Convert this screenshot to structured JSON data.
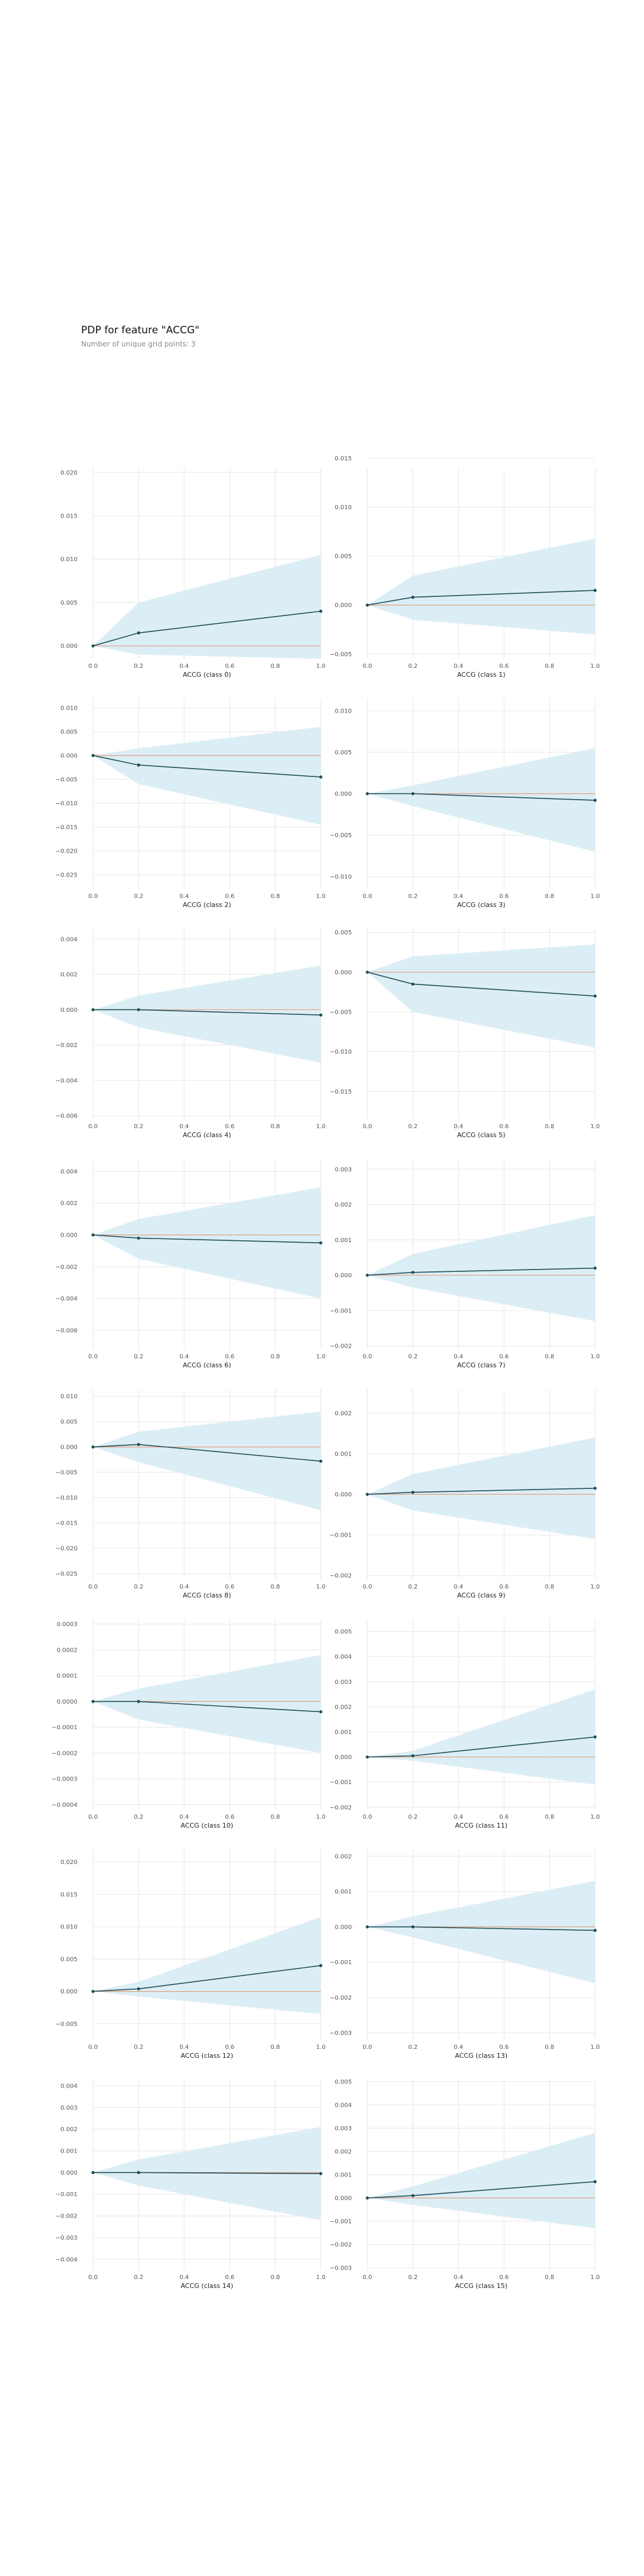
{
  "title": "PDP for feature \"ACCG\"",
  "subtitle": "Number of unique grid points: 3",
  "colors": {
    "line": "#1f4e5a",
    "band": "#d8ecf4",
    "zero": "#e0a080",
    "grid": "#e6e6e6"
  },
  "chart_data": [
    {
      "type": "line",
      "xlabel": "ACCG (class 0)",
      "x": [
        0.0,
        0.2,
        1.0
      ],
      "y": [
        0.0,
        0.0015,
        0.004
      ],
      "lower": [
        0.0,
        -0.001,
        -0.0015
      ],
      "upper": [
        0.0,
        0.005,
        0.0105
      ],
      "xlim": [
        0,
        1
      ],
      "ylim": [
        -0.0015,
        0.0205
      ],
      "xticks": [
        0.0,
        0.2,
        0.4,
        0.6,
        0.8,
        1.0
      ],
      "yticks": [
        0.0,
        0.005,
        0.01,
        0.015,
        0.02
      ],
      "yticklabels": [
        "0.000",
        "0.005",
        "0.010",
        "0.015",
        "0.020"
      ]
    },
    {
      "type": "line",
      "xlabel": "ACCG (class 1)",
      "x": [
        0.0,
        0.2,
        1.0
      ],
      "y": [
        0.0,
        0.0008,
        0.0015
      ],
      "lower": [
        0.0,
        -0.0015,
        -0.003
      ],
      "upper": [
        0.0,
        0.003,
        0.0068
      ],
      "xlim": [
        0,
        1
      ],
      "ylim": [
        -0.0055,
        0.014
      ],
      "xticks": [
        0.0,
        0.2,
        0.4,
        0.6,
        0.8,
        1.0
      ],
      "yticks": [
        -0.005,
        0.0,
        0.005,
        0.01,
        0.015
      ],
      "yticklabels": [
        "−0.005",
        "0.000",
        "0.005",
        "0.010",
        "0.015"
      ]
    },
    {
      "type": "line",
      "xlabel": "ACCG (class 2)",
      "x": [
        0.0,
        0.2,
        1.0
      ],
      "y": [
        0.0,
        -0.002,
        -0.0045
      ],
      "lower": [
        0.0,
        -0.006,
        -0.0145
      ],
      "upper": [
        0.0,
        0.0015,
        0.006
      ],
      "xlim": [
        0,
        1
      ],
      "ylim": [
        -0.028,
        0.012
      ],
      "xticks": [
        0.0,
        0.2,
        0.4,
        0.6,
        0.8,
        1.0
      ],
      "yticks": [
        -0.025,
        -0.02,
        -0.015,
        -0.01,
        -0.005,
        0.0,
        0.005,
        0.01
      ],
      "yticklabels": [
        "−0.025",
        "−0.020",
        "−0.015",
        "−0.010",
        "−0.005",
        "0.000",
        "0.005",
        "0.010"
      ]
    },
    {
      "type": "line",
      "xlabel": "ACCG (class 3)",
      "x": [
        0.0,
        0.2,
        1.0
      ],
      "y": [
        0.0,
        0.0,
        -0.0008
      ],
      "lower": [
        0.0,
        -0.0015,
        -0.007
      ],
      "upper": [
        0.0,
        0.001,
        0.0055
      ],
      "xlim": [
        0,
        1
      ],
      "ylim": [
        -0.0115,
        0.0115
      ],
      "xticks": [
        0.0,
        0.2,
        0.4,
        0.6,
        0.8,
        1.0
      ],
      "yticks": [
        -0.01,
        -0.005,
        0.0,
        0.005,
        0.01
      ],
      "yticklabels": [
        "−0.010",
        "−0.005",
        "0.000",
        "0.005",
        "0.010"
      ]
    },
    {
      "type": "line",
      "xlabel": "ACCG (class 4)",
      "x": [
        0.0,
        0.2,
        1.0
      ],
      "y": [
        0.0,
        0.0,
        -0.0003
      ],
      "lower": [
        0.0,
        -0.001,
        -0.003
      ],
      "upper": [
        0.0,
        0.0008,
        0.0025
      ],
      "xlim": [
        0,
        1
      ],
      "ylim": [
        -0.0062,
        0.0046
      ],
      "xticks": [
        0.0,
        0.2,
        0.4,
        0.6,
        0.8,
        1.0
      ],
      "yticks": [
        -0.006,
        -0.004,
        -0.002,
        0.0,
        0.002,
        0.004
      ],
      "yticklabels": [
        "−0.006",
        "−0.004",
        "−0.002",
        "0.000",
        "0.002",
        "0.004"
      ]
    },
    {
      "type": "line",
      "xlabel": "ACCG (class 5)",
      "x": [
        0.0,
        0.2,
        1.0
      ],
      "y": [
        0.0,
        -0.0015,
        -0.003
      ],
      "lower": [
        0.0,
        -0.005,
        -0.0095
      ],
      "upper": [
        0.0,
        0.002,
        0.0035
      ],
      "xlim": [
        0,
        1
      ],
      "ylim": [
        -0.0185,
        0.0055
      ],
      "xticks": [
        0.0,
        0.2,
        0.4,
        0.6,
        0.8,
        1.0
      ],
      "yticks": [
        -0.015,
        -0.01,
        -0.005,
        0.0,
        0.005
      ],
      "yticklabels": [
        "−0.015",
        "−0.010",
        "−0.005",
        "0.000",
        "0.005"
      ]
    },
    {
      "type": "line",
      "xlabel": "ACCG (class 6)",
      "x": [
        0.0,
        0.2,
        1.0
      ],
      "y": [
        0.0,
        -0.0002,
        -0.0005
      ],
      "lower": [
        0.0,
        -0.0015,
        -0.004
      ],
      "upper": [
        0.0,
        0.001,
        0.003
      ],
      "xlim": [
        0,
        1
      ],
      "ylim": [
        -0.0072,
        0.0048
      ],
      "xticks": [
        0.0,
        0.2,
        0.4,
        0.6,
        0.8,
        1.0
      ],
      "yticks": [
        -0.006,
        -0.004,
        -0.002,
        0.0,
        0.002,
        0.004
      ],
      "yticklabels": [
        "−0.006",
        "−0.004",
        "−0.002",
        "0.000",
        "0.002",
        "0.004"
      ]
    },
    {
      "type": "line",
      "xlabel": "ACCG (class 7)",
      "x": [
        0.0,
        0.2,
        1.0
      ],
      "y": [
        0.0,
        8e-05,
        0.0002
      ],
      "lower": [
        0.0,
        -0.00035,
        -0.0013
      ],
      "upper": [
        0.0,
        0.0006,
        0.0017
      ],
      "xlim": [
        0,
        1
      ],
      "ylim": [
        -0.0021,
        0.0033
      ],
      "xticks": [
        0.0,
        0.2,
        0.4,
        0.6,
        0.8,
        1.0
      ],
      "yticks": [
        -0.002,
        -0.001,
        0.0,
        0.001,
        0.002,
        0.003
      ],
      "yticklabels": [
        "−0.002",
        "−0.001",
        "0.000",
        "0.001",
        "0.002",
        "0.003"
      ]
    },
    {
      "type": "line",
      "xlabel": "ACCG (class 8)",
      "x": [
        0.0,
        0.2,
        1.0
      ],
      "y": [
        0.0,
        0.0005,
        -0.0028
      ],
      "lower": [
        0.0,
        -0.003,
        -0.0125
      ],
      "upper": [
        0.0,
        0.003,
        0.007
      ],
      "xlim": [
        0,
        1
      ],
      "ylim": [
        -0.0262,
        0.0115
      ],
      "xticks": [
        0.0,
        0.2,
        0.4,
        0.6,
        0.8,
        1.0
      ],
      "yticks": [
        -0.025,
        -0.02,
        -0.015,
        -0.01,
        -0.005,
        0.0,
        0.005,
        0.01
      ],
      "yticklabels": [
        "−0.025",
        "−0.020",
        "−0.015",
        "−0.010",
        "−0.005",
        "0.000",
        "0.005",
        "0.010"
      ]
    },
    {
      "type": "line",
      "xlabel": "ACCG (class 9)",
      "x": [
        0.0,
        0.2,
        1.0
      ],
      "y": [
        0.0,
        5e-05,
        0.00015
      ],
      "lower": [
        0.0,
        -0.0004,
        -0.0011
      ],
      "upper": [
        0.0,
        0.0005,
        0.0014
      ],
      "xlim": [
        0,
        1
      ],
      "ylim": [
        -0.0021,
        0.0026
      ],
      "xticks": [
        0.0,
        0.2,
        0.4,
        0.6,
        0.8,
        1.0
      ],
      "yticks": [
        -0.002,
        -0.001,
        0.0,
        0.001,
        0.002
      ],
      "yticklabels": [
        "−0.002",
        "−0.001",
        "0.000",
        "0.001",
        "0.002"
      ]
    },
    {
      "type": "line",
      "xlabel": "ACCG (class 10)",
      "x": [
        0.0,
        0.2,
        1.0
      ],
      "y": [
        0.0,
        0.0,
        -4e-05
      ],
      "lower": [
        0.0,
        -7e-05,
        -0.0002
      ],
      "upper": [
        0.0,
        5e-05,
        0.00018
      ],
      "xlim": [
        0,
        1
      ],
      "ylim": [
        -0.00042,
        0.00032
      ],
      "xticks": [
        0.0,
        0.2,
        0.4,
        0.6,
        0.8,
        1.0
      ],
      "yticks": [
        -0.0004,
        -0.0003,
        -0.0002,
        -0.0001,
        0.0,
        0.0001,
        0.0002,
        0.0003
      ],
      "yticklabels": [
        "−0.0004",
        "−0.0003",
        "−0.0002",
        "−0.0001",
        "0.0000",
        "0.0001",
        "0.0002",
        "0.0003"
      ]
    },
    {
      "type": "line",
      "xlabel": "ACCG (class 11)",
      "x": [
        0.0,
        0.2,
        1.0
      ],
      "y": [
        0.0,
        5e-05,
        0.0008
      ],
      "lower": [
        0.0,
        -0.00015,
        -0.0011
      ],
      "upper": [
        0.0,
        0.00025,
        0.0027
      ],
      "xlim": [
        0,
        1
      ],
      "ylim": [
        -0.0021,
        0.0055
      ],
      "xticks": [
        0.0,
        0.2,
        0.4,
        0.6,
        0.8,
        1.0
      ],
      "yticks": [
        -0.002,
        -0.001,
        0.0,
        0.001,
        0.002,
        0.003,
        0.004,
        0.005
      ],
      "yticklabels": [
        "−0.002",
        "−0.001",
        "0.000",
        "0.001",
        "0.002",
        "0.003",
        "0.004",
        "0.005"
      ]
    },
    {
      "type": "line",
      "xlabel": "ACCG (class 12)",
      "x": [
        0.0,
        0.2,
        1.0
      ],
      "y": [
        0.0,
        0.0004,
        0.004
      ],
      "lower": [
        0.0,
        -0.0008,
        -0.0035
      ],
      "upper": [
        0.0,
        0.0015,
        0.0115
      ],
      "xlim": [
        0,
        1
      ],
      "ylim": [
        -0.0075,
        0.022
      ],
      "xticks": [
        0.0,
        0.2,
        0.4,
        0.6,
        0.8,
        1.0
      ],
      "yticks": [
        -0.005,
        0.0,
        0.005,
        0.01,
        0.015,
        0.02
      ],
      "yticklabels": [
        "−0.005",
        "0.000",
        "0.005",
        "0.010",
        "0.015",
        "0.020"
      ]
    },
    {
      "type": "line",
      "xlabel": "ACCG (class 13)",
      "x": [
        0.0,
        0.2,
        1.0
      ],
      "y": [
        0.0,
        0.0,
        -0.0001
      ],
      "lower": [
        0.0,
        -0.0003,
        -0.0016
      ],
      "upper": [
        0.0,
        0.0003,
        0.0013
      ],
      "xlim": [
        0,
        1
      ],
      "ylim": [
        -0.0032,
        0.0022
      ],
      "xticks": [
        0.0,
        0.2,
        0.4,
        0.6,
        0.8,
        1.0
      ],
      "yticks": [
        -0.003,
        -0.002,
        -0.001,
        0.0,
        0.001,
        0.002
      ],
      "yticklabels": [
        "−0.003",
        "−0.002",
        "−0.001",
        "0.000",
        "0.001",
        "0.002"
      ]
    },
    {
      "type": "line",
      "xlabel": "ACCG (class 14)",
      "x": [
        0.0,
        0.2,
        1.0
      ],
      "y": [
        0.0,
        0.0,
        -5e-05
      ],
      "lower": [
        0.0,
        -0.0006,
        -0.0022
      ],
      "upper": [
        0.0,
        0.0006,
        0.0021
      ],
      "xlim": [
        0,
        1
      ],
      "ylim": [
        -0.0045,
        0.0043
      ],
      "xticks": [
        0.0,
        0.2,
        0.4,
        0.6,
        0.8,
        1.0
      ],
      "yticks": [
        -0.004,
        -0.003,
        -0.002,
        -0.001,
        0.0,
        0.001,
        0.002,
        0.003,
        0.004
      ],
      "yticklabels": [
        "−0.004",
        "−0.003",
        "−0.002",
        "−0.001",
        "0.000",
        "0.001",
        "0.002",
        "0.003",
        "0.004"
      ]
    },
    {
      "type": "line",
      "xlabel": "ACCG (class 15)",
      "x": [
        0.0,
        0.2,
        1.0
      ],
      "y": [
        0.0,
        0.0001,
        0.0007
      ],
      "lower": [
        0.0,
        -0.0003,
        -0.0013
      ],
      "upper": [
        0.0,
        0.0005,
        0.0028
      ],
      "xlim": [
        0,
        1
      ],
      "ylim": [
        -0.0031,
        0.0051
      ],
      "xticks": [
        0.0,
        0.2,
        0.4,
        0.6,
        0.8,
        1.0
      ],
      "yticks": [
        -0.003,
        -0.002,
        -0.001,
        0.0,
        0.001,
        0.002,
        0.003,
        0.004,
        0.005
      ],
      "yticklabels": [
        "−0.003",
        "−0.002",
        "−0.001",
        "0.000",
        "0.001",
        "0.002",
        "0.003",
        "0.004",
        "0.005"
      ]
    }
  ]
}
